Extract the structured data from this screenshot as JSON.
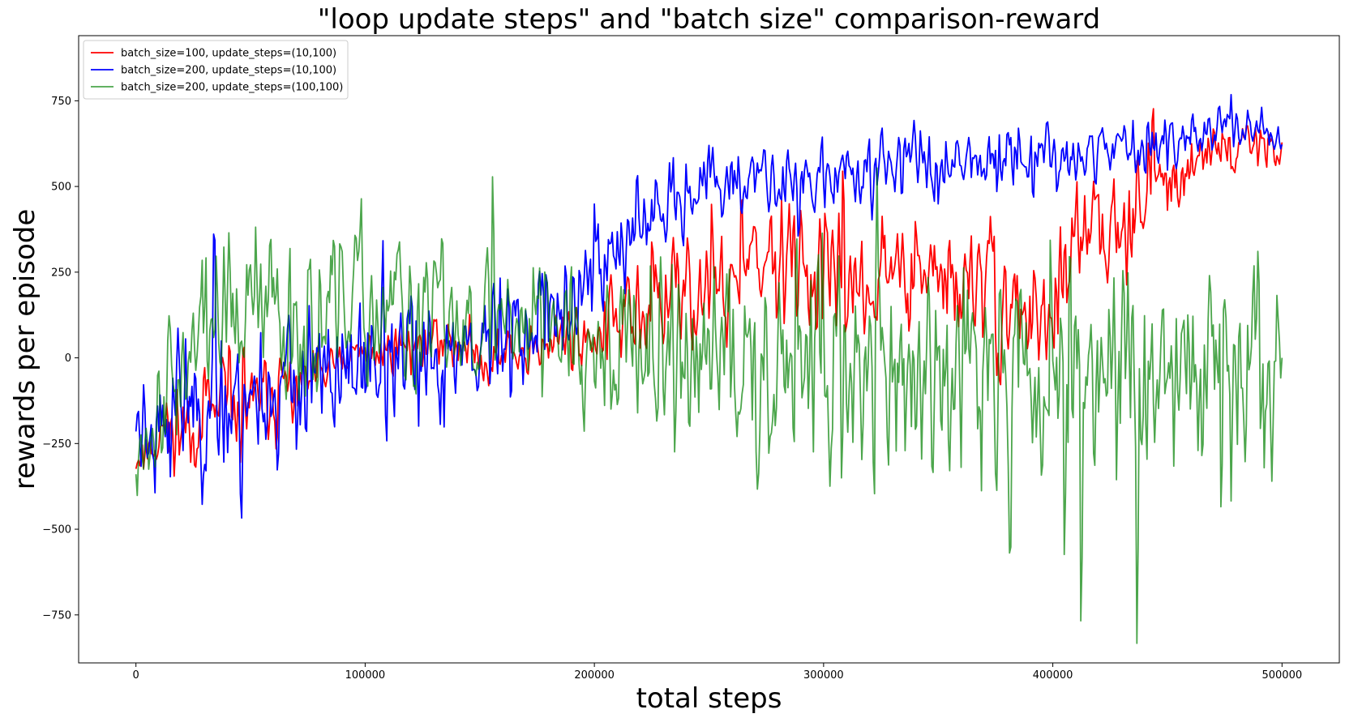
{
  "chart_data": {
    "type": "line",
    "title": "\"loop update steps\" and \"batch size\" comparison-reward",
    "xlabel": "total steps",
    "ylabel": "rewards per episode",
    "xlim": [
      -25000,
      525000
    ],
    "ylim": [
      -890,
      940
    ],
    "xticks": [
      0,
      100000,
      200000,
      300000,
      400000,
      500000
    ],
    "xtick_labels": [
      "0",
      "100000",
      "200000",
      "300000",
      "400000",
      "500000"
    ],
    "yticks": [
      -750,
      -500,
      -250,
      0,
      250,
      500,
      750
    ],
    "ytick_labels": [
      "−750",
      "−500",
      "−250",
      "0",
      "250",
      "500",
      "750"
    ],
    "grid": false,
    "legend_position": "top-left",
    "series": [
      {
        "name": "batch_size=100, update_steps=(10,100)",
        "color": "#ff0000",
        "opacity": 1,
        "x": [
          0,
          10000,
          20000,
          30000,
          40000,
          50000,
          60000,
          70000,
          80000,
          90000,
          100000,
          110000,
          120000,
          130000,
          140000,
          150000,
          160000,
          170000,
          180000,
          190000,
          200000,
          210000,
          220000,
          230000,
          240000,
          250000,
          260000,
          270000,
          280000,
          290000,
          300000,
          310000,
          320000,
          330000,
          340000,
          350000,
          360000,
          370000,
          380000,
          390000,
          400000,
          410000,
          420000,
          430000,
          440000,
          450000,
          460000,
          470000,
          480000,
          490000,
          500000
        ],
        "y_center": [
          -290,
          -230,
          -190,
          -170,
          -160,
          -140,
          -110,
          -80,
          -50,
          -20,
          10,
          30,
          40,
          45,
          40,
          20,
          0,
          20,
          50,
          70,
          80,
          100,
          110,
          160,
          190,
          200,
          220,
          250,
          270,
          260,
          240,
          220,
          230,
          250,
          240,
          220,
          200,
          190,
          150,
          120,
          130,
          300,
          380,
          430,
          480,
          520,
          570,
          600,
          620,
          630,
          620
        ],
        "y_spread": [
          70,
          110,
          130,
          140,
          130,
          120,
          110,
          100,
          90,
          80,
          70,
          70,
          70,
          70,
          70,
          70,
          70,
          70,
          80,
          90,
          100,
          120,
          140,
          150,
          160,
          170,
          170,
          170,
          170,
          170,
          170,
          170,
          170,
          170,
          170,
          170,
          170,
          170,
          170,
          160,
          160,
          160,
          150,
          140,
          130,
          110,
          90,
          80,
          70,
          60,
          50
        ],
        "seed": 11
      },
      {
        "name": "batch_size=200, update_steps=(10,100)",
        "color": "#0000ff",
        "opacity": 1,
        "x": [
          0,
          10000,
          20000,
          30000,
          40000,
          50000,
          60000,
          70000,
          80000,
          90000,
          100000,
          110000,
          120000,
          130000,
          140000,
          150000,
          160000,
          170000,
          180000,
          190000,
          200000,
          210000,
          220000,
          230000,
          240000,
          250000,
          260000,
          270000,
          280000,
          290000,
          300000,
          310000,
          320000,
          330000,
          340000,
          350000,
          360000,
          370000,
          380000,
          390000,
          400000,
          410000,
          420000,
          430000,
          440000,
          450000,
          460000,
          470000,
          480000,
          490000,
          500000
        ],
        "y_center": [
          -170,
          -150,
          -130,
          -120,
          -120,
          -110,
          -100,
          -90,
          -70,
          -50,
          -30,
          -20,
          -10,
          0,
          20,
          40,
          60,
          80,
          120,
          180,
          250,
          320,
          380,
          430,
          470,
          490,
          500,
          510,
          520,
          530,
          530,
          540,
          550,
          560,
          570,
          580,
          580,
          590,
          590,
          600,
          600,
          600,
          610,
          610,
          620,
          630,
          640,
          650,
          660,
          660,
          640
        ],
        "y_spread": [
          180,
          200,
          200,
          200,
          200,
          200,
          200,
          190,
          190,
          190,
          190,
          190,
          180,
          180,
          180,
          180,
          170,
          160,
          160,
          150,
          140,
          130,
          120,
          110,
          100,
          100,
          100,
          100,
          100,
          100,
          100,
          100,
          100,
          100,
          100,
          100,
          100,
          100,
          100,
          90,
          90,
          90,
          90,
          80,
          80,
          80,
          70,
          70,
          70,
          70,
          60
        ],
        "seed": 23
      },
      {
        "name": "batch_size=200, update_steps=(100,100)",
        "color": "#008000",
        "opacity": 0.7,
        "x": [
          0,
          10000,
          20000,
          30000,
          40000,
          50000,
          60000,
          70000,
          80000,
          90000,
          100000,
          110000,
          120000,
          130000,
          140000,
          150000,
          160000,
          170000,
          180000,
          190000,
          200000,
          210000,
          220000,
          230000,
          240000,
          250000,
          260000,
          270000,
          280000,
          290000,
          300000,
          310000,
          320000,
          330000,
          340000,
          350000,
          360000,
          370000,
          380000,
          390000,
          400000,
          410000,
          420000,
          430000,
          440000,
          450000,
          460000,
          470000,
          480000,
          490000,
          500000
        ],
        "y_center": [
          -250,
          -150,
          -20,
          80,
          110,
          120,
          130,
          140,
          140,
          140,
          130,
          120,
          110,
          110,
          110,
          120,
          130,
          130,
          120,
          100,
          60,
          20,
          0,
          0,
          0,
          0,
          0,
          0,
          0,
          -20,
          -40,
          -40,
          -40,
          -40,
          -40,
          -40,
          -40,
          -40,
          -40,
          -40,
          -40,
          -40,
          -40,
          -40,
          -40,
          -40,
          -40,
          -40,
          -40,
          -40,
          -40
        ],
        "y_spread": [
          120,
          160,
          200,
          220,
          230,
          230,
          230,
          230,
          230,
          220,
          210,
          210,
          200,
          200,
          200,
          200,
          190,
          190,
          190,
          190,
          200,
          220,
          240,
          260,
          270,
          280,
          290,
          290,
          290,
          290,
          300,
          300,
          310,
          320,
          320,
          320,
          320,
          320,
          320,
          320,
          320,
          320,
          320,
          320,
          320,
          320,
          320,
          330,
          340,
          340,
          330
        ],
        "seed": 37
      }
    ]
  }
}
